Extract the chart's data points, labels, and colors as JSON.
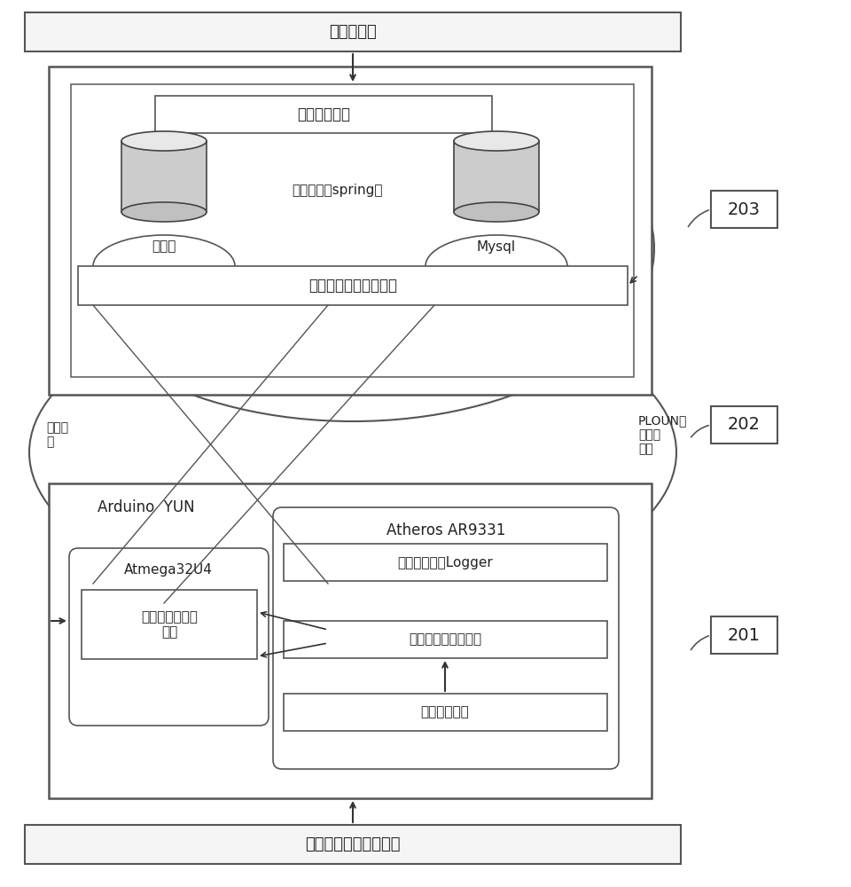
{
  "bg_color": "#ffffff",
  "top_bar_text": "新命令上传",
  "bottom_bar_text": "命令序列（应用程序）",
  "cmd_mgmt_text": "命令管理接口",
  "cloud_server_text": "云服务器（spring）",
  "prog_lib_text": "程序库",
  "mysql_text": "Mysql",
  "cmd_interpret_text": "命令解释模块代码组合",
  "network_burn_text": "网络烧\n录",
  "ploun_text": "PLOUN算\n法定制\n结果",
  "label_203": "203",
  "label_202": "202",
  "label_201": "201",
  "arduino_text": "Arduino  YUN",
  "atheros_text": "Atheros AR9331",
  "atmega_text": "Atmega32U4",
  "user_logger_text": "用户使用命令Logger",
  "full_cmd_text": "全功能命令解释模块",
  "cmd_dispatch_text": "命令分发模块",
  "custom_cmd_text": "自定制命令解释\n模块"
}
